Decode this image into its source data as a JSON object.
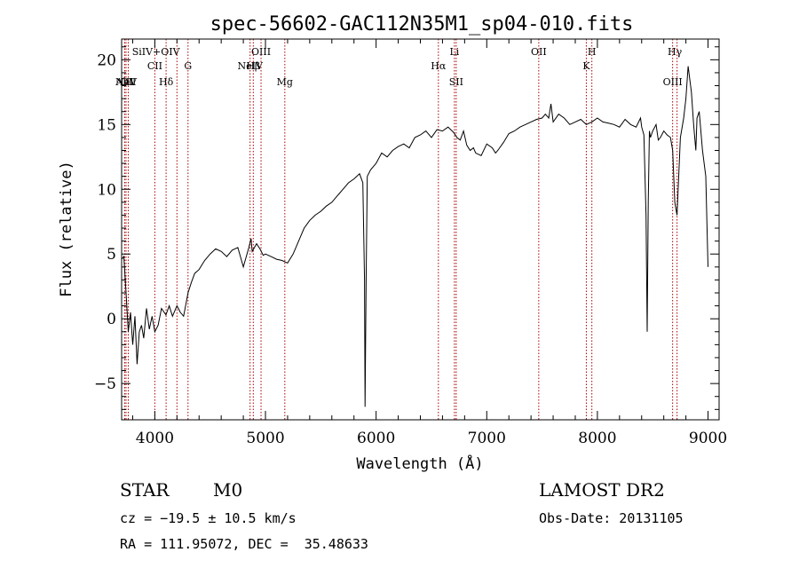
{
  "chart_data": {
    "type": "line",
    "title": "spec-56602-GAC112N35M1_sp04-010.fits",
    "xlabel": "Wavelength (Å)",
    "ylabel": "Flux (relative)",
    "xlim": [
      3700,
      9100
    ],
    "ylim": [
      -7.8,
      21.6
    ],
    "x_ticks": [
      4000,
      5000,
      6000,
      7000,
      8000,
      9000
    ],
    "y_ticks": [
      -5,
      0,
      5,
      10,
      15,
      20
    ],
    "grid": false,
    "series": [
      {
        "x": [
          3700,
          3720,
          3740,
          3760,
          3780,
          3800,
          3820,
          3840,
          3860,
          3880,
          3900,
          3925,
          3950,
          3975,
          4000,
          4030,
          4060,
          4100,
          4130,
          4160,
          4200,
          4230,
          4260,
          4300,
          4330,
          4360,
          4400,
          4450,
          4500,
          4550,
          4600,
          4650,
          4700,
          4750,
          4800,
          4850,
          4870,
          4880,
          4900,
          4920,
          4950,
          4980,
          5000,
          5050,
          5100,
          5150,
          5200,
          5250,
          5300,
          5350,
          5400,
          5450,
          5500,
          5550,
          5600,
          5650,
          5700,
          5750,
          5800,
          5850,
          5880,
          5895,
          5900,
          5910,
          5920,
          5950,
          6000,
          6050,
          6100,
          6150,
          6200,
          6250,
          6300,
          6350,
          6400,
          6450,
          6500,
          6550,
          6600,
          6650,
          6700,
          6730,
          6760,
          6790,
          6820,
          6850,
          6880,
          6900,
          6950,
          7000,
          7050,
          7080,
          7100,
          7150,
          7200,
          7250,
          7300,
          7350,
          7400,
          7450,
          7500,
          7530,
          7560,
          7580,
          7600,
          7650,
          7700,
          7750,
          7800,
          7850,
          7900,
          7950,
          8000,
          8050,
          8100,
          8150,
          8200,
          8250,
          8300,
          8350,
          8390,
          8400,
          8420,
          8440,
          8450,
          8460,
          8470,
          8480,
          8500,
          8530,
          8550,
          8570,
          8600,
          8630,
          8660,
          8680,
          8700,
          8720,
          8750,
          8780,
          8800,
          8820,
          8850,
          8870,
          8890,
          8900,
          8920,
          8950,
          8980,
          9000
        ],
        "y": [
          4.6,
          4.8,
          2.0,
          -1.0,
          0.5,
          -2.0,
          0.2,
          -3.5,
          -1.0,
          -0.5,
          -1.5,
          0.8,
          -0.8,
          0.2,
          -1.0,
          -0.5,
          0.8,
          0.3,
          1.0,
          0.2,
          1.0,
          0.5,
          0.2,
          2.0,
          2.8,
          3.5,
          3.8,
          4.5,
          5.0,
          5.4,
          5.2,
          4.8,
          5.3,
          5.5,
          4.0,
          5.5,
          6.2,
          5.2,
          5.5,
          5.8,
          5.4,
          4.9,
          5.0,
          4.8,
          4.6,
          4.5,
          4.3,
          5.0,
          6.0,
          7.0,
          7.6,
          8.0,
          8.3,
          8.7,
          9.0,
          9.5,
          10.0,
          10.5,
          10.8,
          11.2,
          10.5,
          3.0,
          -6.8,
          3.0,
          11.0,
          11.5,
          12.0,
          12.8,
          12.5,
          13.0,
          13.3,
          13.5,
          13.2,
          14.0,
          14.2,
          14.5,
          14.0,
          14.6,
          14.5,
          14.8,
          14.4,
          14.0,
          13.8,
          14.5,
          13.4,
          13.0,
          13.2,
          12.8,
          12.6,
          13.5,
          13.2,
          12.8,
          13.0,
          13.6,
          14.3,
          14.5,
          14.8,
          15.0,
          15.2,
          15.4,
          15.5,
          15.8,
          15.5,
          16.6,
          15.2,
          15.8,
          15.5,
          15.0,
          15.2,
          15.4,
          15.0,
          15.2,
          15.5,
          15.2,
          15.1,
          15.0,
          14.8,
          15.4,
          15.0,
          14.8,
          15.5,
          14.8,
          14.2,
          8.0,
          -1.0,
          9.0,
          14.5,
          14.0,
          14.5,
          15.0,
          13.8,
          14.0,
          14.5,
          14.2,
          14.0,
          13.0,
          9.0,
          8.0,
          14.0,
          15.5,
          17.0,
          19.5,
          17.5,
          15.0,
          13.0,
          15.5,
          16.0,
          13.0,
          11.0,
          4.0
        ]
      }
    ],
    "line_markers": [
      {
        "name": "AlII",
        "x": 3728,
        "row": 3
      },
      {
        "name": "NeV",
        "x": 3740,
        "row": 3
      },
      {
        "name": "OII",
        "x": 3760,
        "row": 3
      },
      {
        "name": "SiIV+OIV",
        "x": 4010,
        "row": 1
      },
      {
        "name": "CII",
        "x": 4000,
        "row": 2
      },
      {
        "name": "Hδ",
        "x": 4102,
        "row": 3
      },
      {
        "name": "G",
        "x": 4300,
        "row": 2
      },
      {
        "name": "OIII",
        "x": 4960,
        "row": 1
      },
      {
        "name": "NeIV",
        "x": 4861,
        "row": 2
      },
      {
        "name": "Hβ",
        "x": 4890,
        "row": 2
      },
      {
        "name": "Mg",
        "x": 5175,
        "row": 3
      },
      {
        "name": "Li",
        "x": 6708,
        "row": 1
      },
      {
        "name": "Hα",
        "x": 6563,
        "row": 2
      },
      {
        "name": "SII",
        "x": 6724,
        "row": 3
      },
      {
        "name": "OII",
        "x": 7470,
        "row": 1
      },
      {
        "name": "H",
        "x": 7950,
        "row": 1
      },
      {
        "name": "K",
        "x": 7900,
        "row": 2
      },
      {
        "name": "Hγ",
        "x": 8700,
        "row": 1
      },
      {
        "name": "OIII",
        "x": 8680,
        "row": 3
      }
    ],
    "marker_x_positions": [
      3728,
      3740,
      3760,
      4000,
      4102,
      4200,
      4300,
      4861,
      4890,
      4960,
      5175,
      6563,
      6708,
      6724,
      7470,
      7900,
      7950,
      8680,
      8720
    ]
  },
  "info": {
    "object_class": "STAR",
    "subclass": "M0",
    "survey": "LAMOST DR2",
    "redshift": "cz = −19.5 ± 10.5 km/s",
    "obs_date": "Obs-Date: 20131105",
    "coordinates": "RA = 111.95072, DEC =  35.48633"
  },
  "colors": {
    "spectrum": "#000000",
    "marker_line": "#aa0000",
    "axes": "#000000"
  }
}
